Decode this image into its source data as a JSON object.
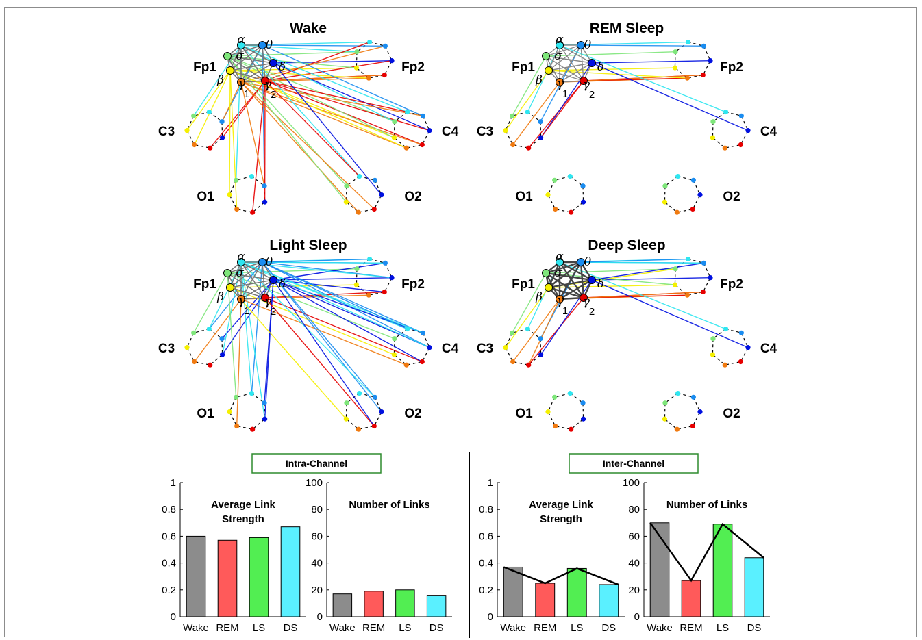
{
  "panels": [
    {
      "title": "Wake",
      "channels": [
        "Fp1",
        "Fp2",
        "C3",
        "C4",
        "O1",
        "O2"
      ]
    },
    {
      "title": "REM Sleep",
      "channels": [
        "Fp1",
        "Fp2",
        "C3",
        "C4",
        "O1",
        "O2"
      ]
    },
    {
      "title": "Light Sleep",
      "channels": [
        "Fp1",
        "Fp2",
        "C3",
        "C4",
        "O1",
        "O2"
      ]
    },
    {
      "title": "Deep Sleep",
      "channels": [
        "Fp1",
        "Fp2",
        "C3",
        "C4",
        "O1",
        "O2"
      ]
    }
  ],
  "bands": [
    {
      "symbol": "α",
      "color": "#2ee6f0"
    },
    {
      "symbol": "θ",
      "color": "#1a8cf0"
    },
    {
      "symbol": "δ",
      "color": "#0010e0"
    },
    {
      "symbol": "γ2",
      "color": "#e60000"
    },
    {
      "symbol": "γ1",
      "color": "#f07a10"
    },
    {
      "symbol": "β",
      "color": "#f5f000"
    },
    {
      "symbol": "σ",
      "color": "#7ee67a"
    }
  ],
  "sections": {
    "intra": "Intra-Channel",
    "inter": "Inter-Channel"
  },
  "chart_data": [
    {
      "type": "bar",
      "group": "Intra-Channel",
      "title": "Average Link Strength",
      "categories": [
        "Wake",
        "REM",
        "LS",
        "DS"
      ],
      "values": [
        0.6,
        0.57,
        0.59,
        0.67
      ],
      "ylim": [
        0,
        1
      ],
      "yticks": [
        "0",
        "0.2",
        "0.4",
        "0.6",
        "0.8",
        "1"
      ],
      "colors": [
        "#8c8c8c",
        "#ff5a5a",
        "#52ee52",
        "#5af0ff"
      ],
      "line": false
    },
    {
      "type": "bar",
      "group": "Intra-Channel",
      "title": "Number of Links",
      "categories": [
        "Wake",
        "REM",
        "LS",
        "DS"
      ],
      "values": [
        17,
        19,
        20,
        16
      ],
      "ylim": [
        0,
        100
      ],
      "yticks": [
        "0",
        "20",
        "40",
        "60",
        "80",
        "100"
      ],
      "colors": [
        "#8c8c8c",
        "#ff5a5a",
        "#52ee52",
        "#5af0ff"
      ],
      "line": false
    },
    {
      "type": "bar",
      "group": "Inter-Channel",
      "title": "Average Link Strength",
      "categories": [
        "Wake",
        "REM",
        "LS",
        "DS"
      ],
      "values": [
        0.37,
        0.25,
        0.36,
        0.24
      ],
      "ylim": [
        0,
        1
      ],
      "yticks": [
        "0",
        "0.2",
        "0.4",
        "0.6",
        "0.8",
        "1"
      ],
      "colors": [
        "#8c8c8c",
        "#ff5a5a",
        "#52ee52",
        "#5af0ff"
      ],
      "line": true
    },
    {
      "type": "bar",
      "group": "Inter-Channel",
      "title": "Number of Links",
      "categories": [
        "Wake",
        "REM",
        "LS",
        "DS"
      ],
      "values": [
        70,
        27,
        69,
        44
      ],
      "ylim": [
        0,
        100
      ],
      "yticks": [
        "0",
        "20",
        "40",
        "60",
        "80",
        "100"
      ],
      "colors": [
        "#8c8c8c",
        "#ff5a5a",
        "#52ee52",
        "#5af0ff"
      ],
      "line": true
    }
  ]
}
